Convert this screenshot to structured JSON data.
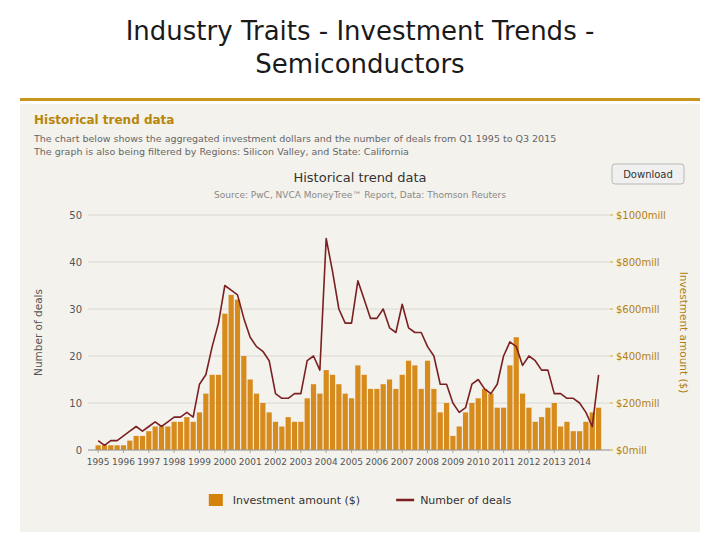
{
  "chart_data": {
    "type": "bar",
    "title": "Industry Traits - Investment Trends -\nSemiconductors",
    "subtitle": "Historical trend data",
    "annotations": [
      "Historical trend data",
      "The chart below shows the aggregated investment dollars and the number of deals from Q1 1995 to Q3 2015",
      "The graph is also being filtered by Regions: Silicon Valley, and State: California",
      "Download",
      "Source: PwC, NVCA MoneyTree™ Report, Data: Thomson Reuters"
    ],
    "x_label": null,
    "y_label": "Number of deals",
    "y2_label": "Investment amount ($)",
    "x": [
      1995,
      1995.25,
      1995.5,
      1995.75,
      1996,
      1996.25,
      1996.5,
      1996.75,
      1997,
      1997.25,
      1997.5,
      1997.75,
      1998,
      1998.25,
      1998.5,
      1998.75,
      1999,
      1999.25,
      1999.5,
      1999.75,
      2000,
      2000.25,
      2000.5,
      2000.75,
      2001,
      2001.25,
      2001.5,
      2001.75,
      2002,
      2002.25,
      2002.5,
      2002.75,
      2003,
      2003.25,
      2003.5,
      2003.75,
      2004,
      2004.25,
      2004.5,
      2004.75,
      2005,
      2005.25,
      2005.5,
      2005.75,
      2006,
      2006.25,
      2006.5,
      2006.75,
      2007,
      2007.25,
      2007.5,
      2007.75,
      2008,
      2008.25,
      2008.5,
      2008.75,
      2009,
      2009.25,
      2009.5,
      2009.75,
      2010,
      2010.25,
      2010.5,
      2010.75,
      2011,
      2011.25,
      2011.5,
      2011.75,
      2012,
      2012.25,
      2012.5,
      2012.75,
      2013,
      2013.25,
      2013.5,
      2013.75,
      2014,
      2014.25,
      2014.5,
      2014.75
    ],
    "series": [
      {
        "name": "Investment amount ($)",
        "type": "bar",
        "color": "#D4820A",
        "axis": "y2",
        "values": [
          1,
          1,
          1,
          1,
          1,
          2,
          3,
          3,
          4,
          5,
          5,
          5,
          6,
          6,
          7,
          6,
          8,
          12,
          16,
          16,
          29,
          33,
          32,
          20,
          15,
          12,
          10,
          8,
          6,
          5,
          7,
          6,
          6,
          11,
          14,
          12,
          17,
          16,
          14,
          12,
          11,
          18,
          16,
          13,
          13,
          14,
          15,
          13,
          16,
          19,
          18,
          13,
          19,
          13,
          8,
          10,
          3,
          5,
          8,
          10,
          11,
          13,
          12,
          9,
          9,
          18,
          24,
          12,
          9,
          6,
          7,
          9,
          10,
          5,
          6,
          4,
          4,
          6,
          8,
          9
        ]
      },
      {
        "name": "Number of deals",
        "type": "line",
        "color": "#7B2020",
        "values": [
          2,
          1,
          2,
          2,
          3,
          4,
          5,
          4,
          5,
          6,
          5,
          6,
          7,
          7,
          8,
          7,
          14,
          16,
          22,
          27,
          35,
          34,
          33,
          28,
          24,
          22,
          21,
          19,
          12,
          11,
          11,
          12,
          12,
          19,
          20,
          17,
          45,
          38,
          30,
          27,
          27,
          36,
          32,
          28,
          28,
          30,
          26,
          25,
          31,
          26,
          25,
          25,
          22,
          20,
          14,
          14,
          10,
          8,
          9,
          14,
          15,
          13,
          12,
          14,
          20,
          23,
          22,
          18,
          20,
          19,
          17,
          17,
          12,
          12,
          11,
          11,
          10,
          8,
          5,
          16
        ]
      }
    ],
    "xlim": [
      1994.6,
      2015.2
    ],
    "xticks": [
      1995,
      1996,
      1997,
      1998,
      1999,
      2000,
      2001,
      2002,
      2003,
      2004,
      2005,
      2006,
      2007,
      2008,
      2009,
      2010,
      2011,
      2012,
      2013,
      2014
    ],
    "ylim": [
      0,
      50
    ],
    "yticks": [
      0,
      10,
      20,
      30,
      40,
      50
    ],
    "y2lim": [
      0,
      50
    ],
    "y2ticks": [
      {
        "value": 0,
        "label": "$0mill"
      },
      {
        "value": 10,
        "label": "$200mill"
      },
      {
        "value": 20,
        "label": "$400mill"
      },
      {
        "value": 30,
        "label": "$600mill"
      },
      {
        "value": 40,
        "label": "$800mill"
      },
      {
        "value": 50,
        "label": "$1000mill"
      }
    ],
    "grid": true,
    "legend": "bottom"
  }
}
